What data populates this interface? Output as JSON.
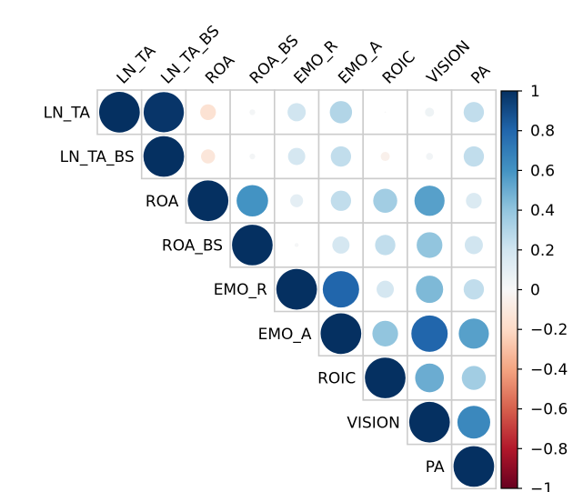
{
  "chart_data": {
    "type": "heatmap",
    "style": "upper-triangle correlation plot, circle size and color proportional to value",
    "variables": [
      "LN_TA",
      "LN_TA_BS",
      "ROA",
      "ROA_BS",
      "EMO_R",
      "EMO_A",
      "ROIC",
      "VISION",
      "PA"
    ],
    "matrix": [
      [
        1.0,
        0.98,
        -0.15,
        0.02,
        0.2,
        0.3,
        0.0,
        0.05,
        0.25
      ],
      [
        null,
        1.0,
        -0.12,
        0.02,
        0.18,
        0.25,
        -0.05,
        0.03,
        0.25
      ],
      [
        null,
        null,
        1.0,
        0.6,
        0.1,
        0.25,
        0.35,
        0.55,
        0.15
      ],
      [
        null,
        null,
        null,
        1.0,
        0.01,
        0.18,
        0.25,
        0.4,
        0.2
      ],
      [
        null,
        null,
        null,
        null,
        1.0,
        0.8,
        0.18,
        0.45,
        0.25
      ],
      [
        null,
        null,
        null,
        null,
        null,
        1.0,
        0.4,
        0.8,
        0.55
      ],
      [
        null,
        null,
        null,
        null,
        null,
        null,
        1.0,
        0.5,
        0.35
      ],
      [
        null,
        null,
        null,
        null,
        null,
        null,
        null,
        1.0,
        0.65
      ],
      [
        null,
        null,
        null,
        null,
        null,
        null,
        null,
        null,
        1.0
      ]
    ],
    "colorbar": {
      "ticks": [
        1,
        0.8,
        0.6,
        0.4,
        0.2,
        0,
        -0.2,
        -0.4,
        -0.6,
        -0.8,
        -1
      ],
      "tick_labels": [
        "1",
        "0.8",
        "0.6",
        "0.4",
        "0.2",
        "0",
        "−0.2",
        "−0.4",
        "−0.6",
        "−0.8",
        "−1"
      ],
      "range": [
        -1,
        1
      ],
      "placement": "right"
    },
    "grid": true,
    "colors": {
      "positive_max": "#053061",
      "neutral": "#f7f7f7",
      "negative_max": "#67001f",
      "grid_line": "#cccccc"
    }
  }
}
